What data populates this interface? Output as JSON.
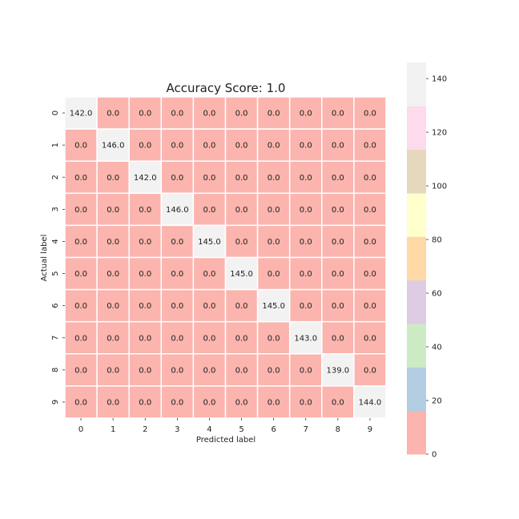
{
  "chart_data": {
    "type": "heatmap",
    "title": "Accuracy Score: 1.0",
    "xlabel": "Predicted label",
    "ylabel": "Actual label",
    "x_ticks": [
      "0",
      "1",
      "2",
      "3",
      "4",
      "5",
      "6",
      "7",
      "8",
      "9"
    ],
    "y_ticks": [
      "0",
      "1",
      "2",
      "3",
      "4",
      "5",
      "6",
      "7",
      "8",
      "9"
    ],
    "matrix": [
      [
        142,
        0,
        0,
        0,
        0,
        0,
        0,
        0,
        0,
        0
      ],
      [
        0,
        146,
        0,
        0,
        0,
        0,
        0,
        0,
        0,
        0
      ],
      [
        0,
        0,
        142,
        0,
        0,
        0,
        0,
        0,
        0,
        0
      ],
      [
        0,
        0,
        0,
        146,
        0,
        0,
        0,
        0,
        0,
        0
      ],
      [
        0,
        0,
        0,
        0,
        145,
        0,
        0,
        0,
        0,
        0
      ],
      [
        0,
        0,
        0,
        0,
        0,
        145,
        0,
        0,
        0,
        0
      ],
      [
        0,
        0,
        0,
        0,
        0,
        0,
        145,
        0,
        0,
        0
      ],
      [
        0,
        0,
        0,
        0,
        0,
        0,
        0,
        143,
        0,
        0
      ],
      [
        0,
        0,
        0,
        0,
        0,
        0,
        0,
        0,
        139,
        0
      ],
      [
        0,
        0,
        0,
        0,
        0,
        0,
        0,
        0,
        0,
        144
      ]
    ],
    "cell_label_format": "one-decimal",
    "colorbar": {
      "ticks": [
        0,
        20,
        40,
        60,
        80,
        100,
        120,
        140
      ],
      "range": [
        0,
        146
      ],
      "colors": [
        "#fbb4ae",
        "#b3cde3",
        "#ccebc5",
        "#decbe4",
        "#fed9a6",
        "#ffffcc",
        "#e5d8bd",
        "#fddaec",
        "#f2f2f2"
      ]
    },
    "grid": false,
    "colorbar_placement": "right"
  }
}
